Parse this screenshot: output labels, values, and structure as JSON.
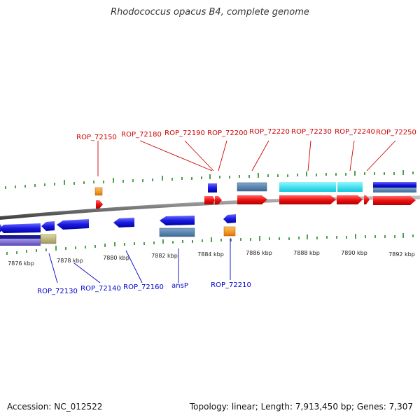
{
  "title": "Rhodococcus opacus B4, complete genome",
  "footer": {
    "accession": "Accession: NC_012522",
    "topology": "Topology: linear; Length: 7,913,450 bp; Genes: 7,307"
  },
  "colors": {
    "forward_label": "#cc0000",
    "reverse_label": "#0000cc",
    "backbone": "#777777",
    "tick": "#228822"
  },
  "scale_labels": [
    "7876 kbp",
    "7878 kbp",
    "7880 kbp",
    "7882 kbp",
    "7884 kbp",
    "7886 kbp",
    "7888 kbp",
    "7890 kbp",
    "7892 kbp"
  ],
  "top_labels": [
    "ROP_72150",
    "ROP_72180",
    "ROP_72190",
    "ROP_72200",
    "ROP_72220",
    "ROP_72230",
    "ROP_72240",
    "ROP_72250"
  ],
  "bottom_labels": [
    "ROP_72130",
    "ROP_72140",
    "ROP_72160",
    "ansP",
    "ROP_72210"
  ]
}
